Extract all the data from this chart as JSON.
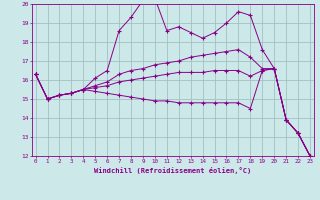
{
  "xlabel": "Windchill (Refroidissement éolien,°C)",
  "bg_color": "#cce8e8",
  "line_color": "#880088",
  "grid_color": "#99bbbb",
  "xmin": 0,
  "xmax": 23,
  "ymin": 12,
  "ymax": 20,
  "yticks": [
    12,
    13,
    14,
    15,
    16,
    17,
    18,
    19,
    20
  ],
  "xticks": [
    0,
    1,
    2,
    3,
    4,
    5,
    6,
    7,
    8,
    9,
    10,
    11,
    12,
    13,
    14,
    15,
    16,
    17,
    18,
    19,
    20,
    21,
    22,
    23
  ],
  "series": [
    [
      16.3,
      15.0,
      15.2,
      15.3,
      15.5,
      16.1,
      16.5,
      18.6,
      19.3,
      20.2,
      20.3,
      18.6,
      18.8,
      18.5,
      18.2,
      18.5,
      19.0,
      19.6,
      19.4,
      17.6,
      16.6,
      13.9,
      13.2,
      12.0
    ],
    [
      16.3,
      15.0,
      15.2,
      15.3,
      15.5,
      15.7,
      15.9,
      16.3,
      16.5,
      16.6,
      16.8,
      16.9,
      17.0,
      17.2,
      17.3,
      17.4,
      17.5,
      17.6,
      17.2,
      16.6,
      16.6,
      13.9,
      13.2,
      12.0
    ],
    [
      16.3,
      15.0,
      15.2,
      15.3,
      15.5,
      15.6,
      15.7,
      15.9,
      16.0,
      16.1,
      16.2,
      16.3,
      16.4,
      16.4,
      16.4,
      16.5,
      16.5,
      16.5,
      16.2,
      16.5,
      16.6,
      13.9,
      13.2,
      12.0
    ],
    [
      16.3,
      15.0,
      15.2,
      15.3,
      15.5,
      15.4,
      15.3,
      15.2,
      15.1,
      15.0,
      14.9,
      14.9,
      14.8,
      14.8,
      14.8,
      14.8,
      14.8,
      14.8,
      14.5,
      16.5,
      16.6,
      13.9,
      13.2,
      12.0
    ]
  ]
}
